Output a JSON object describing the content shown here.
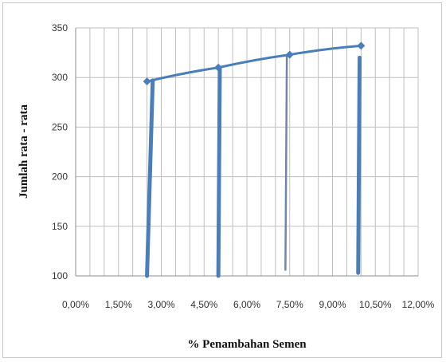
{
  "chart_data": {
    "type": "line",
    "title": "",
    "xlabel": "% Penambahan Semen",
    "ylabel": "Jumlah rata - rata",
    "xlim": [
      0,
      12
    ],
    "ylim": [
      100,
      350
    ],
    "x_ticks": [
      0,
      1.5,
      3,
      4.5,
      6,
      7.5,
      9,
      10.5,
      12
    ],
    "x_tick_labels": [
      "0,00%",
      "1,50%",
      "3,00%",
      "4,50%",
      "6,00%",
      "7,50%",
      "9,00%",
      "10,50%",
      "12,00%"
    ],
    "y_ticks": [
      100,
      150,
      200,
      250,
      300,
      350
    ],
    "y_tick_labels": [
      "100",
      "150",
      "200",
      "250",
      "300",
      "350"
    ],
    "x_minor_step": 0.5,
    "grid": true,
    "series": [
      {
        "x": [
          2.5,
          5,
          7.5,
          10
        ],
        "y": [
          296,
          310,
          323,
          332
        ]
      }
    ],
    "vertical_lines": [
      {
        "x_top": 2.7,
        "y_top": 297,
        "x_bottom": 2.5,
        "y_bottom": 100
      },
      {
        "x_top": 5.05,
        "y_top": 309,
        "x_bottom": 5.0,
        "y_bottom": 100
      },
      {
        "x_top": 7.4,
        "y_top": 322,
        "x_bottom": 7.35,
        "y_bottom": 106
      },
      {
        "x_top": 9.95,
        "y_top": 320,
        "x_bottom": 9.9,
        "y_bottom": 103
      }
    ],
    "colors": {
      "series": "#4a7ebb",
      "thin_line": "#6f86a8",
      "grid": "#bfbfbf",
      "axis": "#8c8c8c"
    }
  }
}
